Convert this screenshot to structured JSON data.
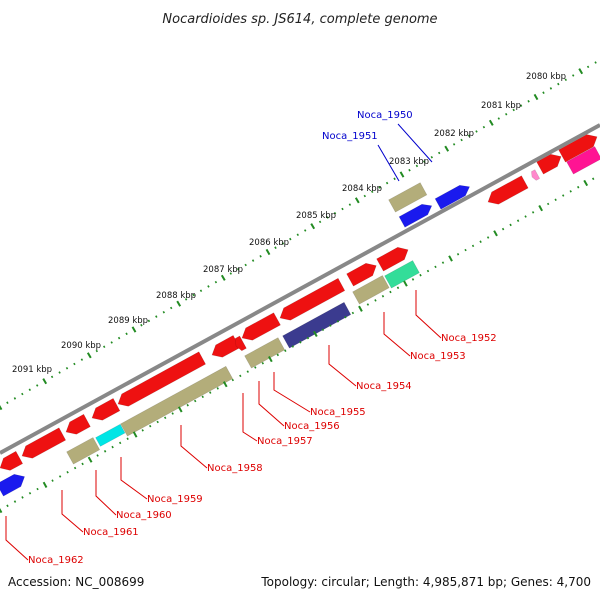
{
  "title": "Nocardioides sp. JS614, complete genome",
  "accession": "Accession: NC_008699",
  "summary": "Topology: circular; Length: 4,985,871 bp; Genes: 4,700",
  "colors": {
    "backbone": "#888888",
    "tick": "#228B22",
    "forward_label": "#0000cc",
    "reverse_label": "#dd0000",
    "cds": "#ee1111",
    "cds_alt": "#ff1493",
    "gene_blue": "#1a1aee",
    "gene_tan": "#b3ad7a",
    "gene_navy": "#3b3b8f",
    "gene_green": "#33dd99",
    "gene_cyan": "#00e5e5",
    "gene_pink": "#ff88cc"
  },
  "ticks": [
    "2080 kbp",
    "2081 kbp",
    "2082 kbp",
    "2083 kbp",
    "2084 kbp",
    "2085 kbp",
    "2086 kbp",
    "2087 kbp",
    "2088 kbp",
    "2089 kbp",
    "2090 kbp",
    "2091 kbp"
  ],
  "forward_labels": [
    "Noca_1950",
    "Noca_1951"
  ],
  "reverse_labels": [
    "Noca_1952",
    "Noca_1953",
    "Noca_1954",
    "Noca_1955",
    "Noca_1956",
    "Noca_1957",
    "Noca_1958",
    "Noca_1959",
    "Noca_1960",
    "Noca_1961",
    "Noca_1962"
  ]
}
